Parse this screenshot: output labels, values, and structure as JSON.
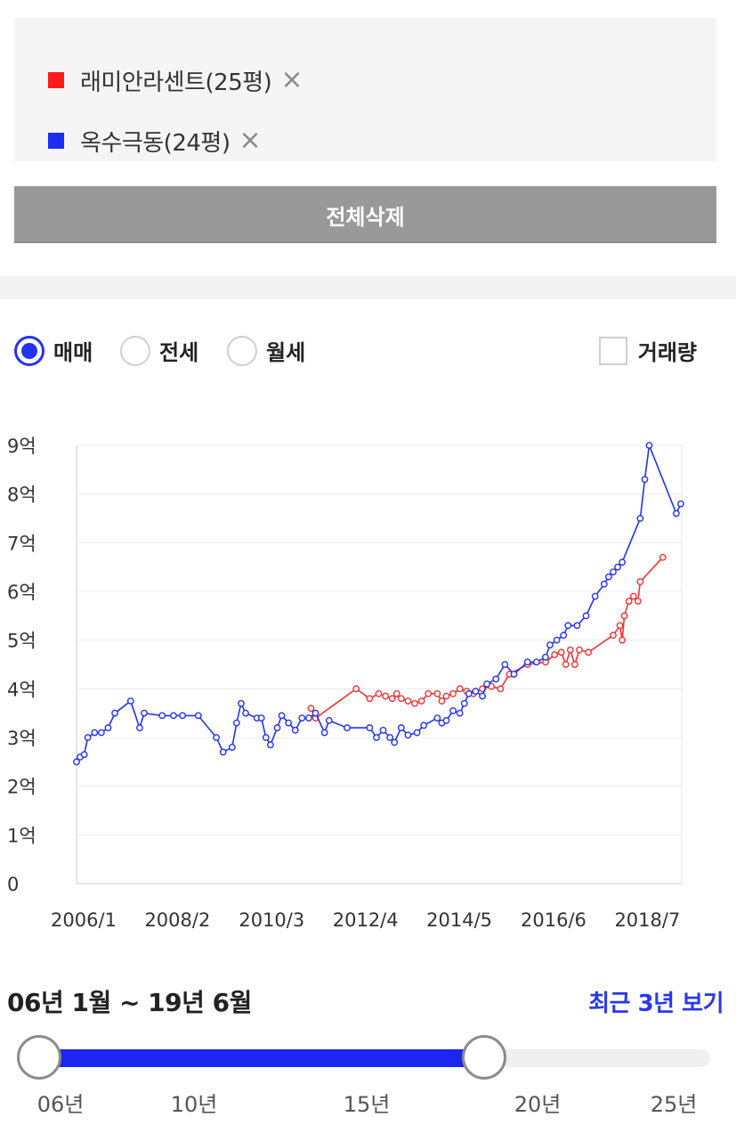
{
  "compare": {
    "items": [
      {
        "label": "래미안라센트(25평)",
        "color": "#ff1a1a"
      },
      {
        "label": "옥수극동(24평)",
        "color": "#1d2cf0"
      }
    ],
    "remove_icon": "×",
    "clear_all_label": "전체삭제"
  },
  "filters": {
    "types": [
      {
        "label": "매매",
        "checked": true
      },
      {
        "label": "전세",
        "checked": false
      },
      {
        "label": "월세",
        "checked": false
      }
    ],
    "volume_label": "거래량",
    "volume_checked": false
  },
  "chart_data": {
    "type": "line",
    "y_tick_labels": [
      "0",
      "1억",
      "2억",
      "3억",
      "4억",
      "5억",
      "6억",
      "7억",
      "8억",
      "9억"
    ],
    "ylim": [
      0,
      9
    ],
    "x_tick_labels": [
      "2006/1",
      "2008/2",
      "2010/3",
      "2012/4",
      "2014/5",
      "2016/6",
      "2018/7"
    ],
    "x_tick_values": [
      2006.0,
      2008.08,
      2010.17,
      2012.25,
      2014.33,
      2016.42,
      2018.5
    ],
    "xlim": [
      2006.0,
      2019.42
    ],
    "grid": true,
    "series": [
      {
        "name": "래미안라센트(25평)",
        "color": "#ee3333",
        "points": [
          [
            2011.2,
            3.6
          ],
          [
            2011.3,
            3.4
          ],
          [
            2012.2,
            4.0
          ],
          [
            2012.5,
            3.8
          ],
          [
            2012.7,
            3.9
          ],
          [
            2012.85,
            3.85
          ],
          [
            2013.0,
            3.8
          ],
          [
            2013.1,
            3.9
          ],
          [
            2013.2,
            3.8
          ],
          [
            2013.35,
            3.75
          ],
          [
            2013.5,
            3.7
          ],
          [
            2013.65,
            3.75
          ],
          [
            2013.8,
            3.9
          ],
          [
            2014.0,
            3.9
          ],
          [
            2014.1,
            3.75
          ],
          [
            2014.2,
            3.85
          ],
          [
            2014.35,
            3.9
          ],
          [
            2014.5,
            4.0
          ],
          [
            2014.65,
            3.95
          ],
          [
            2014.8,
            3.9
          ],
          [
            2015.0,
            4.0
          ],
          [
            2015.2,
            4.05
          ],
          [
            2015.4,
            4.0
          ],
          [
            2015.6,
            4.3
          ],
          [
            2016.0,
            4.5
          ],
          [
            2016.4,
            4.55
          ],
          [
            2016.6,
            4.7
          ],
          [
            2016.75,
            4.75
          ],
          [
            2016.85,
            4.5
          ],
          [
            2016.95,
            4.8
          ],
          [
            2017.05,
            4.5
          ],
          [
            2017.15,
            4.8
          ],
          [
            2017.35,
            4.75
          ],
          [
            2017.9,
            5.1
          ],
          [
            2018.05,
            5.3
          ],
          [
            2018.1,
            5.0
          ],
          [
            2018.15,
            5.5
          ],
          [
            2018.25,
            5.8
          ],
          [
            2018.35,
            5.9
          ],
          [
            2018.45,
            5.8
          ],
          [
            2018.5,
            6.2
          ],
          [
            2019.0,
            6.7
          ]
        ]
      },
      {
        "name": "옥수극동(24평)",
        "color": "#2233ee",
        "points": [
          [
            2006.0,
            2.5
          ],
          [
            2006.08,
            2.6
          ],
          [
            2006.17,
            2.65
          ],
          [
            2006.25,
            3.0
          ],
          [
            2006.4,
            3.1
          ],
          [
            2006.55,
            3.1
          ],
          [
            2006.7,
            3.2
          ],
          [
            2006.85,
            3.5
          ],
          [
            2007.2,
            3.75
          ],
          [
            2007.4,
            3.2
          ],
          [
            2007.5,
            3.5
          ],
          [
            2007.9,
            3.45
          ],
          [
            2008.15,
            3.45
          ],
          [
            2008.35,
            3.45
          ],
          [
            2008.7,
            3.45
          ],
          [
            2009.1,
            3.0
          ],
          [
            2009.25,
            2.7
          ],
          [
            2009.45,
            2.8
          ],
          [
            2009.55,
            3.3
          ],
          [
            2009.65,
            3.7
          ],
          [
            2009.75,
            3.5
          ],
          [
            2010.0,
            3.4
          ],
          [
            2010.1,
            3.4
          ],
          [
            2010.2,
            3.0
          ],
          [
            2010.3,
            2.85
          ],
          [
            2010.45,
            3.2
          ],
          [
            2010.55,
            3.45
          ],
          [
            2010.7,
            3.3
          ],
          [
            2010.85,
            3.15
          ],
          [
            2011.0,
            3.4
          ],
          [
            2011.15,
            3.4
          ],
          [
            2011.3,
            3.5
          ],
          [
            2011.5,
            3.1
          ],
          [
            2011.6,
            3.35
          ],
          [
            2012.0,
            3.2
          ],
          [
            2012.5,
            3.2
          ],
          [
            2012.65,
            3.0
          ],
          [
            2012.8,
            3.15
          ],
          [
            2012.95,
            3.0
          ],
          [
            2013.05,
            2.9
          ],
          [
            2013.2,
            3.2
          ],
          [
            2013.35,
            3.05
          ],
          [
            2013.55,
            3.1
          ],
          [
            2013.7,
            3.25
          ],
          [
            2014.0,
            3.4
          ],
          [
            2014.1,
            3.3
          ],
          [
            2014.2,
            3.35
          ],
          [
            2014.35,
            3.55
          ],
          [
            2014.5,
            3.5
          ],
          [
            2014.6,
            3.7
          ],
          [
            2014.7,
            3.9
          ],
          [
            2014.85,
            3.95
          ],
          [
            2015.0,
            3.85
          ],
          [
            2015.1,
            4.1
          ],
          [
            2015.3,
            4.2
          ],
          [
            2015.5,
            4.5
          ],
          [
            2015.7,
            4.3
          ],
          [
            2016.0,
            4.55
          ],
          [
            2016.2,
            4.55
          ],
          [
            2016.4,
            4.65
          ],
          [
            2016.5,
            4.9
          ],
          [
            2016.65,
            5.0
          ],
          [
            2016.8,
            5.1
          ],
          [
            2016.9,
            5.3
          ],
          [
            2017.1,
            5.3
          ],
          [
            2017.3,
            5.5
          ],
          [
            2017.5,
            5.9
          ],
          [
            2017.7,
            6.15
          ],
          [
            2017.8,
            6.3
          ],
          [
            2017.9,
            6.4
          ],
          [
            2018.0,
            6.5
          ],
          [
            2018.1,
            6.6
          ],
          [
            2018.5,
            7.5
          ],
          [
            2018.6,
            8.3
          ],
          [
            2018.7,
            9.0
          ],
          [
            2019.3,
            7.6
          ],
          [
            2019.4,
            7.8
          ]
        ]
      }
    ]
  },
  "period": {
    "label": "06년 1월 ~ 19년 6월",
    "recent_label": "최근 3년 보기",
    "tick_labels": [
      "06년",
      "10년",
      "15년",
      "20년",
      "25년"
    ],
    "start_fraction": 0.0,
    "end_fraction": 0.663
  }
}
